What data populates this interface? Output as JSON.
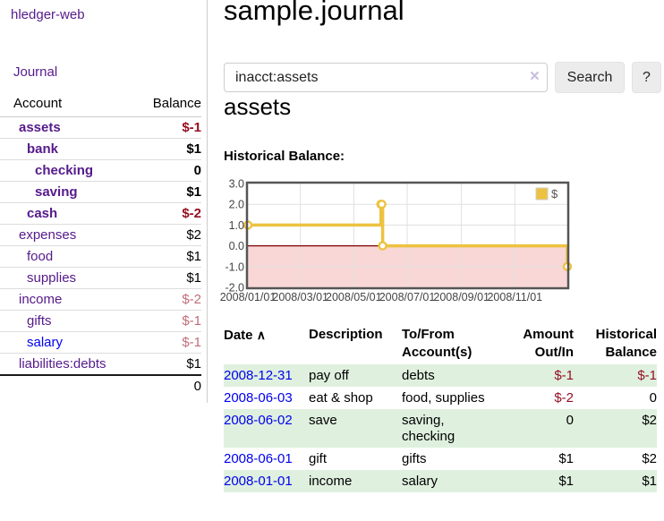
{
  "app": {
    "brand": "hledger-web",
    "nav_journal": "Journal"
  },
  "header": {
    "title": "sample.journal"
  },
  "search": {
    "value": "inacct:assets",
    "clear_icon": "×",
    "button_label": "Search",
    "help_label": "?"
  },
  "account_page": {
    "heading": "assets",
    "chart_label": "Historical Balance:"
  },
  "sidebar": {
    "col_account": "Account",
    "col_balance": "Balance",
    "accounts": [
      {
        "name": "assets",
        "depth": 1,
        "bold": true,
        "balance": "$-1",
        "neg": "strong",
        "link": "purple"
      },
      {
        "name": "bank",
        "depth": 2,
        "bold": true,
        "balance": "$1",
        "neg": "none",
        "link": "purple"
      },
      {
        "name": "checking",
        "depth": 3,
        "bold": true,
        "balance": "0",
        "neg": "none",
        "link": "purple"
      },
      {
        "name": "saving",
        "depth": 3,
        "bold": true,
        "balance": "$1",
        "neg": "none",
        "link": "purple"
      },
      {
        "name": "cash",
        "depth": 2,
        "bold": true,
        "balance": "$-2",
        "neg": "strong",
        "link": "purple"
      },
      {
        "name": "expenses",
        "depth": 1,
        "bold": false,
        "balance": "$2",
        "neg": "none",
        "link": "purple"
      },
      {
        "name": "food",
        "depth": 2,
        "bold": false,
        "balance": "$1",
        "neg": "none",
        "link": "purple"
      },
      {
        "name": "supplies",
        "depth": 2,
        "bold": false,
        "balance": "$1",
        "neg": "none",
        "link": "purple"
      },
      {
        "name": "income",
        "depth": 1,
        "bold": false,
        "balance": "$-2",
        "neg": "soft",
        "link": "purple"
      },
      {
        "name": "gifts",
        "depth": 2,
        "bold": false,
        "balance": "$-1",
        "neg": "soft",
        "link": "purple"
      },
      {
        "name": "salary",
        "depth": 2,
        "bold": false,
        "balance": "$-1",
        "neg": "soft",
        "link": "blue"
      },
      {
        "name": "liabilities:debts",
        "depth": 1,
        "bold": false,
        "balance": "$1",
        "neg": "none",
        "link": "purple"
      }
    ],
    "total": "0"
  },
  "chart_data": {
    "type": "line",
    "style": "step-after",
    "title": "Historical Balance:",
    "xlim": [
      "2008-01-01",
      "2008-12-31"
    ],
    "ylim": [
      -2,
      3
    ],
    "grid": true,
    "legend": {
      "label": "$",
      "position": "top-right"
    },
    "y_ticks": [
      {
        "v": 3,
        "label": "3.0"
      },
      {
        "v": 2,
        "label": "2.0"
      },
      {
        "v": 1,
        "label": "1.0"
      },
      {
        "v": 0,
        "label": "0.0"
      },
      {
        "v": -1,
        "label": "-1.0"
      },
      {
        "v": -2,
        "label": "-2.0"
      }
    ],
    "x_ticks": [
      {
        "date": "2008-01-01",
        "label": "2008/01/01"
      },
      {
        "date": "2008-03-01",
        "label": "2008/03/01"
      },
      {
        "date": "2008-05-01",
        "label": "2008/05/01"
      },
      {
        "date": "2008-07-01",
        "label": "2008/07/01"
      },
      {
        "date": "2008-09-01",
        "label": "2008/09/01"
      },
      {
        "date": "2008-11-01",
        "label": "2008/11/01"
      }
    ],
    "series": [
      {
        "name": "$",
        "color": "#edc240",
        "points": [
          {
            "date": "2008-01-01",
            "value": 1
          },
          {
            "date": "2008-06-01",
            "value": 2
          },
          {
            "date": "2008-06-02",
            "value": 2
          },
          {
            "date": "2008-06-03",
            "value": 0
          },
          {
            "date": "2008-12-31",
            "value": -1
          }
        ]
      }
    ],
    "negative_region_color": "#f9d7d7",
    "zero_line_color": "#7d0000"
  },
  "register": {
    "headers": {
      "date": "Date",
      "sort_icon": "∧",
      "description": "Description",
      "accounts_line1": "To/From",
      "accounts_line2": "Account(s)",
      "amount_line1": "Amount",
      "amount_line2": "Out/In",
      "balance_line1": "Historical",
      "balance_line2": "Balance"
    },
    "rows": [
      {
        "date": "2008-12-31",
        "description": "pay off",
        "accounts": "debts",
        "amount": "$-1",
        "balance": "$-1"
      },
      {
        "date": "2008-06-03",
        "description": "eat & shop",
        "accounts": "food, supplies",
        "amount": "$-2",
        "balance": "0"
      },
      {
        "date": "2008-06-02",
        "description": "save",
        "accounts": "saving, checking",
        "amount": "0",
        "balance": "$2"
      },
      {
        "date": "2008-06-01",
        "description": "gift",
        "accounts": "gifts",
        "amount": "$1",
        "balance": "$2"
      },
      {
        "date": "2008-01-01",
        "description": "income",
        "accounts": "salary",
        "amount": "$1",
        "balance": "$1"
      }
    ]
  },
  "colors": {
    "accent_purple": "#551a8b",
    "link_blue": "#0000ee",
    "negative_strong": "#950f22",
    "negative_soft": "#bf6e78",
    "row_green": "#dff0df",
    "chart_line_gold": "#edc240",
    "chart_negative_region": "#f9d7d7",
    "chart_zero_line": "#7d0000"
  }
}
